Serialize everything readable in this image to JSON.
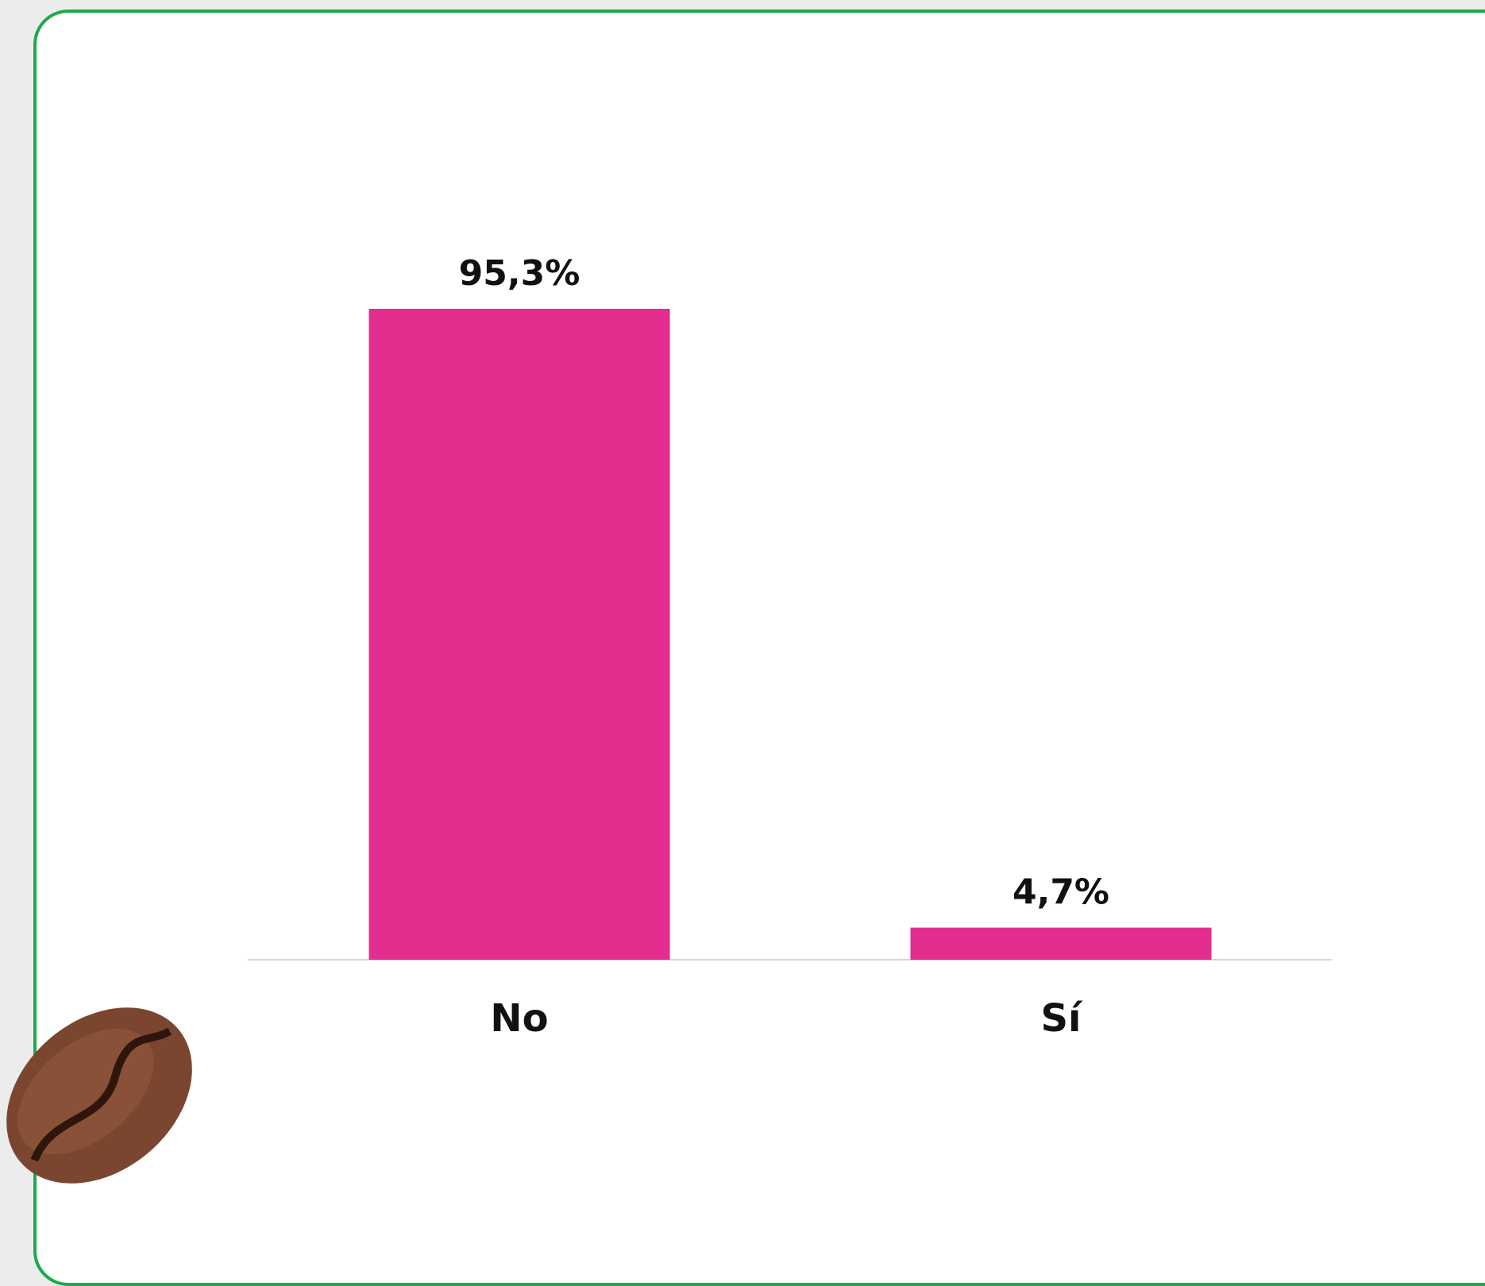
{
  "chart_data": {
    "type": "bar",
    "categories": [
      "No",
      "Sí"
    ],
    "values": [
      95.3,
      4.7
    ],
    "value_labels": [
      "95,3%",
      "4,7%"
    ],
    "color": "#e32d8f"
  }
}
